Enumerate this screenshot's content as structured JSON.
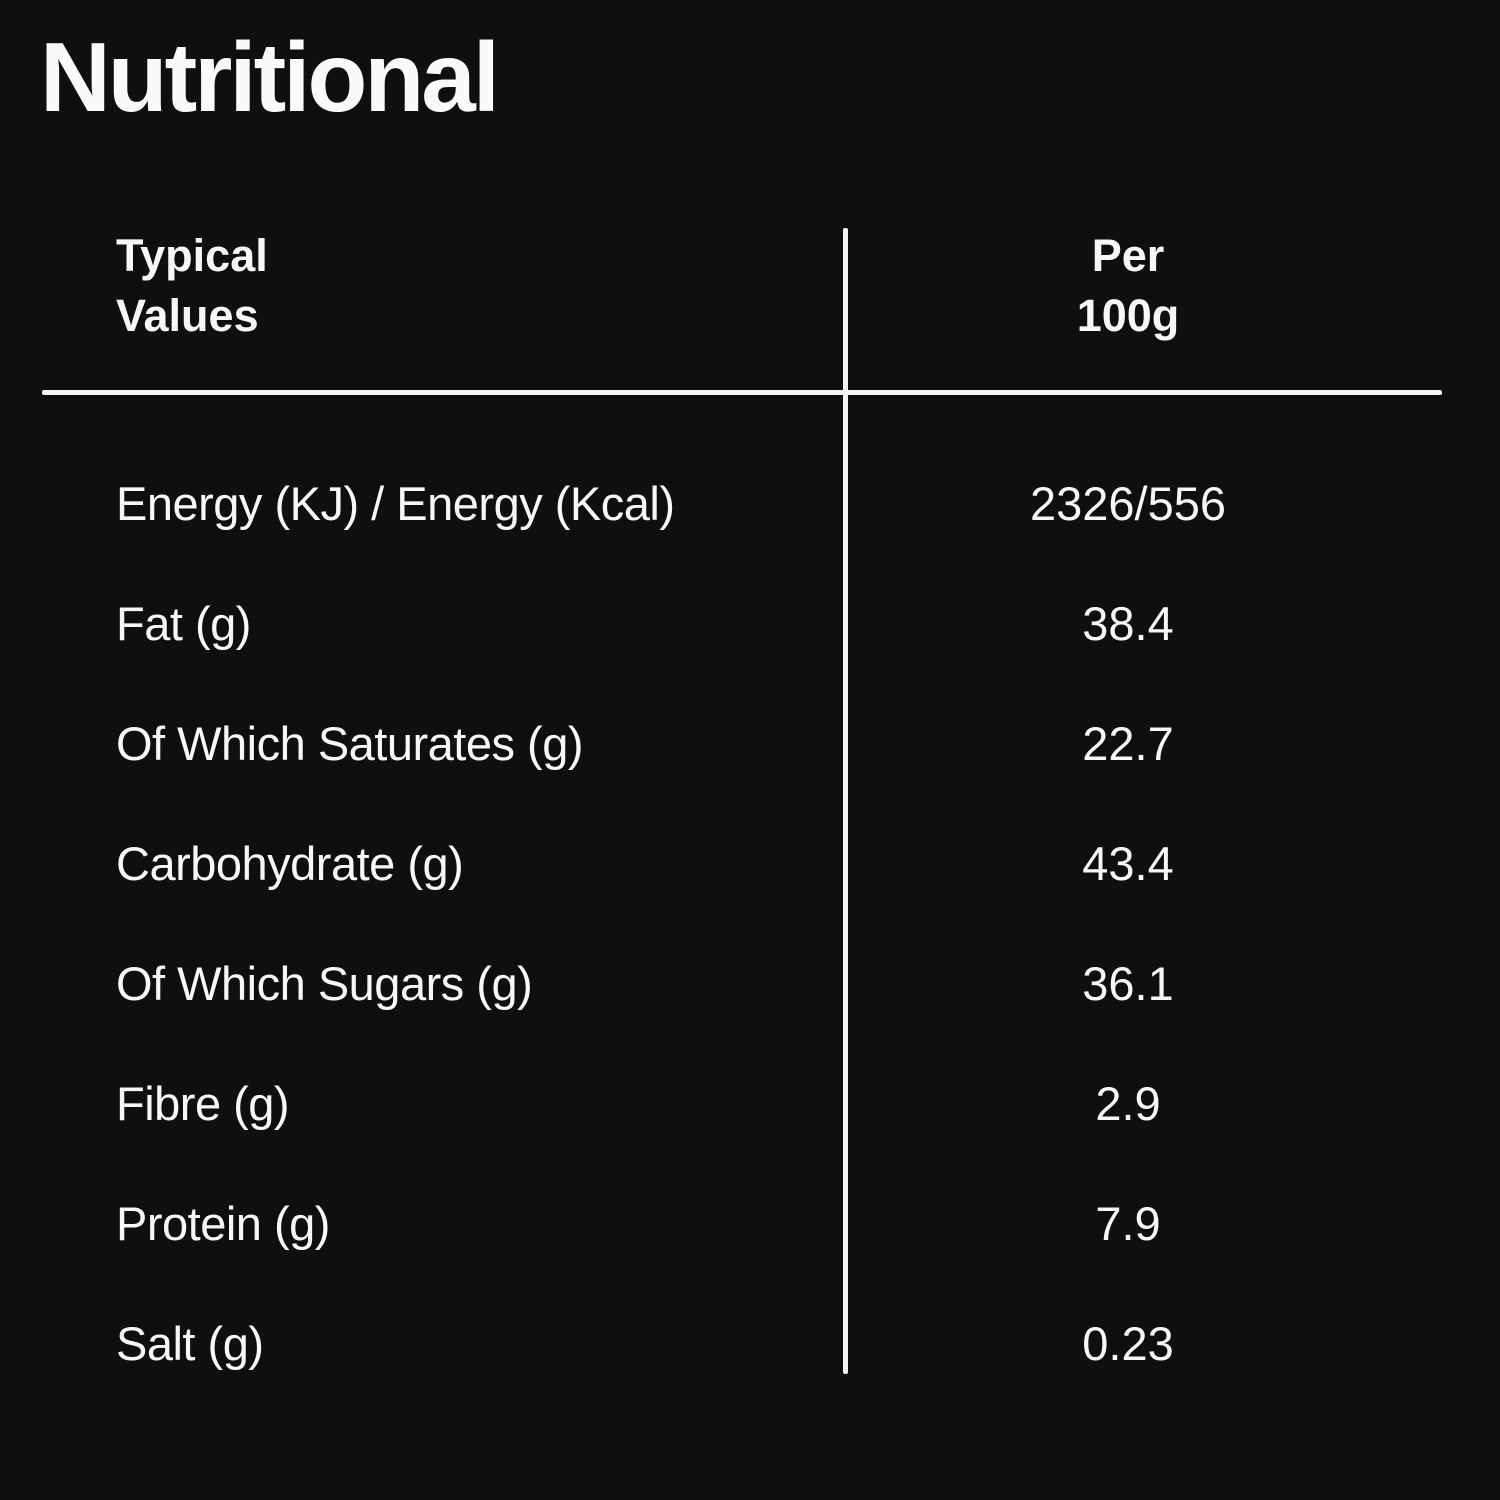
{
  "page": {
    "background_color": "#110f0e",
    "text_color": "#f8f7f5",
    "line_color": "#f4f3f1"
  },
  "title": "Nutritional",
  "table": {
    "headers": {
      "typical_line1": "Typical",
      "typical_line2": "Values",
      "per_line1": "Per",
      "per_line2": "100g"
    },
    "rows": [
      {
        "label": "Energy (KJ) / Energy (Kcal)",
        "value": "2326/556"
      },
      {
        "label": "Fat (g)",
        "value": "38.4"
      },
      {
        "label": "Of Which Saturates (g)",
        "value": "22.7"
      },
      {
        "label": "Carbohydrate (g)",
        "value": "43.4"
      },
      {
        "label": "Of Which Sugars (g)",
        "value": "36.1"
      },
      {
        "label": "Fibre (g)",
        "value": "2.9"
      },
      {
        "label": "Protein (g)",
        "value": "7.9"
      },
      {
        "label": "Salt (g)",
        "value": "0.23"
      }
    ]
  }
}
